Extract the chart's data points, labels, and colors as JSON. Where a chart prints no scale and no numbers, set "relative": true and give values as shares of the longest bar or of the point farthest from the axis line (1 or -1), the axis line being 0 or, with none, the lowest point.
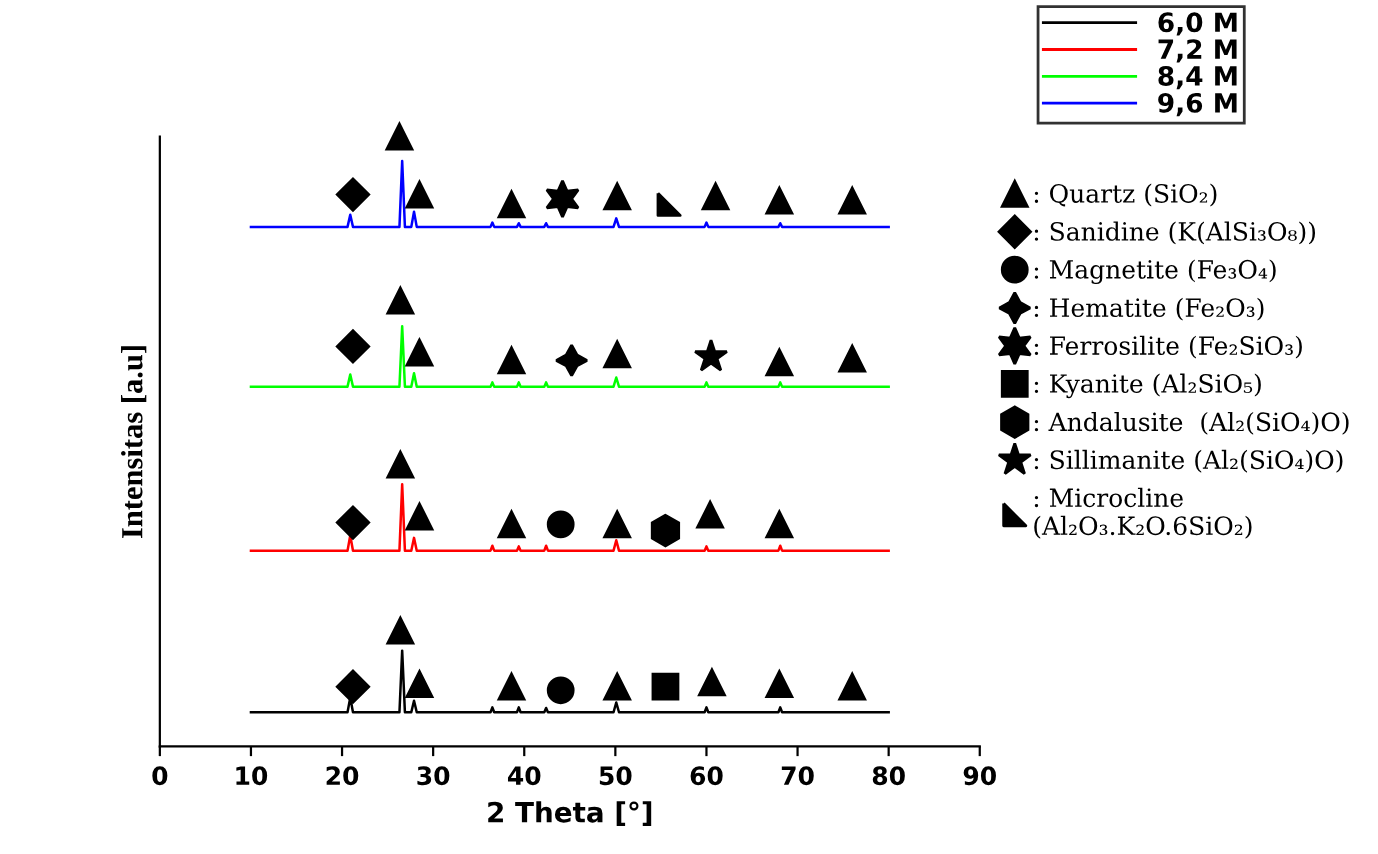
{
  "chart_data": {
    "type": "line",
    "xlabel": "2 Theta [°]",
    "ylabel": "Intensitas [a.u]",
    "relative": true,
    "tick_labels": "x",
    "xlim": [
      0,
      90
    ],
    "xticks": [
      0,
      10,
      20,
      30,
      40,
      50,
      60,
      70,
      80,
      90
    ],
    "grid": false,
    "legend": "right",
    "line_style": "solid",
    "series": [
      {
        "name": "6,0 M",
        "color": "#000000",
        "x": [
          10,
          20.6,
          20.9,
          21.2,
          26.3,
          26.6,
          26.9,
          27.6,
          27.9,
          28.2,
          36.3,
          36.5,
          36.7,
          39.2,
          39.4,
          39.6,
          42.2,
          42.4,
          42.6,
          49.8,
          50.1,
          50.4,
          59.8,
          60,
          60.2,
          67.9,
          68.1,
          68.3,
          80
        ],
        "values": [
          0.056,
          0.056,
          0.08,
          0.056,
          0.056,
          0.157,
          0.056,
          0.056,
          0.075,
          0.056,
          0.056,
          0.064,
          0.056,
          0.056,
          0.064,
          0.056,
          0.056,
          0.063,
          0.056,
          0.056,
          0.072,
          0.056,
          0.056,
          0.064,
          0.056,
          0.056,
          0.064,
          0.056,
          0.056
        ]
      },
      {
        "name": "7,2 M",
        "color": "#ff0000",
        "x": [
          10,
          20.6,
          20.9,
          21.2,
          26.3,
          26.6,
          26.9,
          27.6,
          27.9,
          28.2,
          36.3,
          36.5,
          36.7,
          39.2,
          39.4,
          39.6,
          42.2,
          42.4,
          42.6,
          49.8,
          50.1,
          50.4,
          59.8,
          60,
          60.2,
          67.9,
          68.1,
          68.3,
          80
        ],
        "values": [
          0.321,
          0.321,
          0.346,
          0.321,
          0.321,
          0.43,
          0.321,
          0.321,
          0.342,
          0.321,
          0.321,
          0.329,
          0.321,
          0.321,
          0.328,
          0.321,
          0.321,
          0.329,
          0.321,
          0.321,
          0.338,
          0.321,
          0.321,
          0.328,
          0.321,
          0.321,
          0.329,
          0.321,
          0.321
        ]
      },
      {
        "name": "8,4 M",
        "color": "#00ff00",
        "x": [
          10,
          20.6,
          20.9,
          21.2,
          26.3,
          26.6,
          26.9,
          27.6,
          27.9,
          28.2,
          36.3,
          36.5,
          36.7,
          39.2,
          39.4,
          39.6,
          42.2,
          42.4,
          42.6,
          49.8,
          50.1,
          50.4,
          59.8,
          60,
          60.2,
          67.9,
          68.1,
          68.3,
          80
        ],
        "values": [
          0.59,
          0.59,
          0.61,
          0.59,
          0.59,
          0.689,
          0.59,
          0.59,
          0.612,
          0.59,
          0.59,
          0.597,
          0.59,
          0.59,
          0.597,
          0.59,
          0.59,
          0.597,
          0.59,
          0.59,
          0.605,
          0.59,
          0.59,
          0.597,
          0.59,
          0.59,
          0.597,
          0.59,
          0.59
        ]
      },
      {
        "name": "9,6 M",
        "color": "#0000ff",
        "x": [
          10,
          20.6,
          20.9,
          21.2,
          26.3,
          26.6,
          26.9,
          27.6,
          27.9,
          28.2,
          36.3,
          36.5,
          36.7,
          39.2,
          39.4,
          39.6,
          42.2,
          42.4,
          42.6,
          49.8,
          50.1,
          50.4,
          59.8,
          60,
          60.2,
          67.9,
          68.1,
          68.3,
          80
        ],
        "values": [
          0.852,
          0.852,
          0.872,
          0.852,
          0.852,
          0.96,
          0.852,
          0.852,
          0.877,
          0.852,
          0.852,
          0.859,
          0.852,
          0.852,
          0.858,
          0.852,
          0.852,
          0.858,
          0.852,
          0.852,
          0.866,
          0.852,
          0.852,
          0.859,
          0.852,
          0.852,
          0.858,
          0.852,
          0.852
        ]
      },
      {
        "type": "scatter",
        "marker": "triangle",
        "name": ": Quartz (SiO₂)",
        "color": "#000000",
        "x": [
          26.4,
          28.5,
          38.6,
          50.2,
          60.6,
          68,
          76,
          26.4,
          28.5,
          38.6,
          50.2,
          60.4,
          68,
          26.4,
          28.5,
          38.6,
          50.2,
          68,
          76,
          26.3,
          28.5,
          38.6,
          50.2,
          61,
          68,
          76
        ],
        "values": [
          0.19,
          0.102,
          0.098,
          0.098,
          0.105,
          0.102,
          0.098,
          0.462,
          0.377,
          0.364,
          0.364,
          0.38,
          0.364,
          0.731,
          0.646,
          0.633,
          0.643,
          0.63,
          0.636,
          1.0,
          0.905,
          0.889,
          0.902,
          0.902,
          0.895,
          0.895
        ]
      },
      {
        "type": "scatter",
        "marker": "diamond",
        "name": ": Sanidine (K(AlSi₃O₈))",
        "color": "#000000",
        "x": [
          21.2,
          21.2,
          21.2,
          21.2
        ],
        "values": [
          0.098,
          0.367,
          0.656,
          0.905
        ]
      },
      {
        "type": "scatter",
        "marker": "circle",
        "name": ": Magnetite (Fe₃O₄)",
        "color": "#000000",
        "x": [
          44,
          44
        ],
        "values": [
          0.092,
          0.364
        ]
      },
      {
        "type": "scatter",
        "marker": "cross",
        "name": ": Hematite (Fe₂O₃)",
        "color": "#000000",
        "x": [
          45.2
        ],
        "values": [
          0.633
        ]
      },
      {
        "type": "scatter",
        "marker": "cross",
        "name": ": Ferrosilite (Fe₂SiO₃)",
        "color": "#000000",
        "x": [
          44.2
        ],
        "values": [
          0.898
        ]
      },
      {
        "type": "scatter",
        "marker": "square",
        "name": ": Kyanite (Al₂SiO₅)",
        "color": "#000000",
        "x": [
          55.5
        ],
        "values": [
          0.098
        ]
      },
      {
        "type": "scatter",
        "marker": "circle",
        "name": ": Andalusite  (Al₂(SiO₄)O)",
        "color": "#000000",
        "x": [
          55.5
        ],
        "values": [
          0.354
        ]
      },
      {
        "type": "scatter",
        "marker": "star",
        "name": ": Sillimanite (Al₂(SiO₄)O)",
        "color": "#000000",
        "x": [
          60.5
        ],
        "values": [
          0.639
        ]
      },
      {
        "type": "scatter",
        "marker": "triangle",
        "name": ": Microcline\n(Al₂O₃.K₂O.6SiO₂)",
        "color": "#000000",
        "x": [
          55.9
        ],
        "values": [
          0.889
        ]
      }
    ]
  }
}
